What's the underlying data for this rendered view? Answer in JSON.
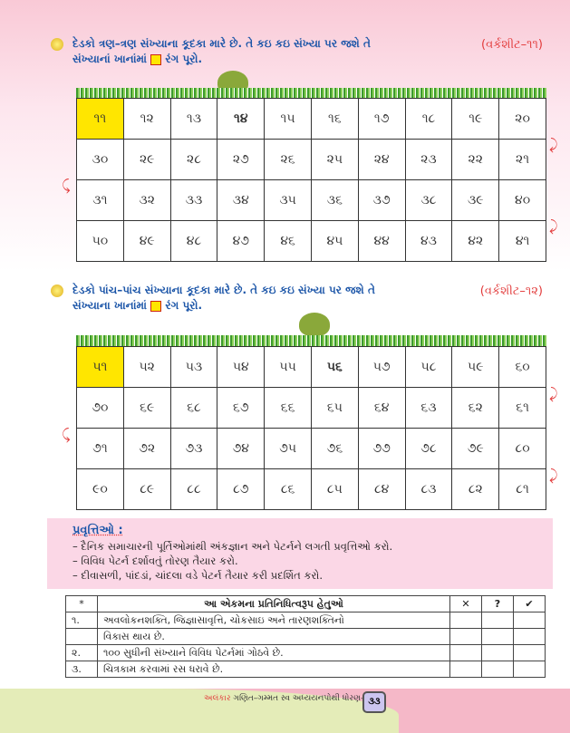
{
  "ex1": {
    "line1": "દેડકો ત્રણ–ત્રણ સંખ્યાના કૂદકા મારે છે. તે કઇ કઇ સંખ્યા પર જશે તે",
    "line2a": "સંખ્યાનાં ખાનાંમાં",
    "line2b": "રંગ પૂરો.",
    "ref": "(વર્કશીટ–૧૧)",
    "rows": [
      [
        "૧૧",
        "૧૨",
        "૧૩",
        "૧૪",
        "૧૫",
        "૧૬",
        "૧૭",
        "૧૮",
        "૧૯",
        "૨૦"
      ],
      [
        "૩૦",
        "૨૯",
        "૨૮",
        "૨૭",
        "૨૬",
        "૨૫",
        "૨૪",
        "૨૩",
        "૨૨",
        "૨૧"
      ],
      [
        "૩૧",
        "૩૨",
        "૩૩",
        "૩૪",
        "૩૫",
        "૩૬",
        "૩૭",
        "૩૮",
        "૩૯",
        "૪૦"
      ],
      [
        "૫૦",
        "૪૯",
        "૪૮",
        "૪૭",
        "૪૬",
        "૪૫",
        "૪૪",
        "૪૩",
        "૪૨",
        "૪૧"
      ]
    ]
  },
  "ex2": {
    "line1": "દેડકો પાંચ–પાંચ સંખ્યાના કૂદકા મારે છે. તે કઇ કઇ સંખ્યા પર જશે તે",
    "line2a": "સંખ્યાના ખાનાંમાં",
    "line2b": "રંગ પૂરો.",
    "ref": "(વર્કશીટ–૧૨)",
    "rows": [
      [
        "૫૧",
        "૫૨",
        "૫૩",
        "૫૪",
        "૫૫",
        "૫૬",
        "૫૭",
        "૫૮",
        "૫૯",
        "૬૦"
      ],
      [
        "૭૦",
        "૬૯",
        "૬૮",
        "૬૭",
        "૬૬",
        "૬૫",
        "૬૪",
        "૬૩",
        "૬૨",
        "૬૧"
      ],
      [
        "૭૧",
        "૭૨",
        "૭૩",
        "૭૪",
        "૭૫",
        "૭૬",
        "૭૭",
        "૭૮",
        "૭૯",
        "૮૦"
      ],
      [
        "૯૦",
        "૮૯",
        "૮૮",
        "૮૭",
        "૮૬",
        "૮૫",
        "૮૪",
        "૮૩",
        "૮૨",
        "૮૧"
      ]
    ]
  },
  "highlight_color": "#ffe600",
  "activities": {
    "title": "પ્રવૃત્તિઓ :",
    "items": [
      "– દૈનિક સમાચારની પૂર્તિઓમાંથી અંકજ્ઞાન અને પેટર્નને લગતી પ્રવૃત્તિઓ કરો.",
      "– વિવિધ પેટર્ન દર્શાવતું તોરણ તૈયાર કરો.",
      "– દીવાસળી, પાંદડાં, ચાંદલા વડે પેટર્ન તૈયાર કરી પ્રદર્શિત કરો."
    ]
  },
  "objectives": {
    "star": "*",
    "header": "આ એકમના પ્રતિનિધિત્વરૂપ હેતુઓ",
    "cols": [
      "✕",
      "?",
      "✔"
    ],
    "rows": [
      [
        "૧.",
        "અવલોકનશક્તિ, જિજ્ઞાસાવૃત્તિ, ચોકસાઇ અને તારણશક્તિનો"
      ],
      [
        "",
        "વિકાસ થાય છે."
      ],
      [
        "૨.",
        "૧૦૦ સુધીની સંખ્યાને વિવિધ પેટર્નમાં ગોઠવે છે."
      ],
      [
        "૩.",
        "ચિત્રકામ કરવામાં રસ ધરાવે છે."
      ]
    ]
  },
  "footer": {
    "brand": "અલંકાર",
    "text": " ગણિત–ગમ્મત સ્વ અધ્યયનપોથી ધોરણ–૨",
    "page": "૩૩"
  }
}
